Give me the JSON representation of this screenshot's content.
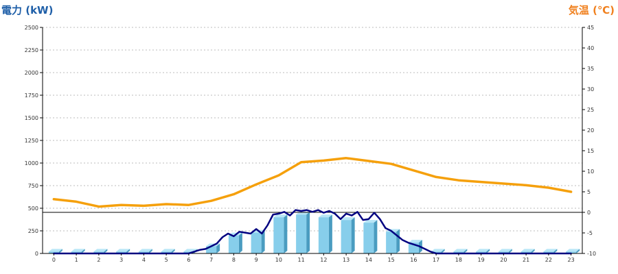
{
  "chart_data": {
    "type": "bar",
    "title": "",
    "ylabel_left": "電力 (kW)",
    "ylabel_right": "気温 (℃)",
    "ylim_left": [
      0,
      2500
    ],
    "yticks_left": [
      "0",
      "250",
      "500",
      "750",
      "1000",
      "1250",
      "1500",
      "1750",
      "2000",
      "2250",
      "2500"
    ],
    "ylim_right": [
      -10,
      45
    ],
    "yticks_right": [
      "-10",
      "-5",
      "0",
      "5",
      "10",
      "15",
      "20",
      "25",
      "30",
      "35",
      "40",
      "45"
    ],
    "categories": [
      "0",
      "1",
      "2",
      "3",
      "4",
      "5",
      "6",
      "7",
      "8",
      "9",
      "10",
      "11",
      "12",
      "13",
      "14",
      "15",
      "16",
      "17",
      "18",
      "19",
      "20",
      "21",
      "22",
      "23"
    ],
    "grid": true,
    "reference_line_temperature": 0,
    "colors": {
      "left_title": "#1f5fa8",
      "right_title": "#f0801e",
      "bar_front": "#87ceeb",
      "bar_side": "#4a9cc0",
      "bar_top": "#b8e6f7",
      "power_line": "#000080",
      "temperature_line": "#f5a00c",
      "grid": "#bbbbbb",
      "axis": "#000000"
    },
    "series": [
      {
        "kind": "bar",
        "axis": "left",
        "values": [
          20,
          20,
          20,
          20,
          20,
          20,
          20,
          80,
          200,
          230,
          400,
          430,
          400,
          370,
          340,
          240,
          120,
          20,
          20,
          20,
          20,
          20,
          20,
          20
        ]
      },
      {
        "kind": "line",
        "axis": "left",
        "x": [
          0,
          0.5,
          1,
          1.5,
          2,
          2.5,
          3,
          3.5,
          4,
          4.5,
          5,
          5.5,
          6,
          6.25,
          6.5,
          6.75,
          7,
          7.25,
          7.5,
          7.75,
          8,
          8.25,
          8.5,
          8.75,
          9,
          9.25,
          9.5,
          9.75,
          10,
          10.25,
          10.5,
          10.75,
          11,
          11.25,
          11.5,
          11.75,
          12,
          12.25,
          12.5,
          12.75,
          13,
          13.25,
          13.5,
          13.75,
          14,
          14.25,
          14.5,
          14.75,
          15,
          15.25,
          15.5,
          15.75,
          16,
          16.25,
          16.5,
          16.75,
          17,
          17.5,
          18,
          18.5,
          19,
          19.5,
          20,
          20.5,
          21,
          21.5,
          22,
          22.5,
          23
        ],
        "values": [
          0,
          0,
          0,
          0,
          0,
          0,
          0,
          0,
          0,
          0,
          0,
          0,
          0,
          20,
          40,
          50,
          80,
          110,
          180,
          220,
          190,
          240,
          230,
          220,
          270,
          220,
          310,
          430,
          440,
          460,
          420,
          480,
          470,
          480,
          460,
          480,
          450,
          470,
          440,
          380,
          440,
          420,
          460,
          370,
          380,
          450,
          380,
          280,
          250,
          200,
          150,
          120,
          100,
          80,
          50,
          20,
          0,
          0,
          0,
          0,
          0,
          0,
          0,
          0,
          0,
          0,
          0,
          0,
          0
        ]
      },
      {
        "kind": "line",
        "axis": "right",
        "x": [
          0,
          1,
          2,
          3,
          4,
          5,
          6,
          7,
          8,
          9,
          10,
          11,
          12,
          13,
          14,
          15,
          16,
          17,
          18,
          19,
          20,
          21,
          22,
          23
        ],
        "values": [
          3.2,
          2.6,
          1.4,
          1.8,
          1.6,
          2.0,
          1.8,
          2.8,
          4.4,
          6.8,
          9.0,
          12.2,
          12.6,
          13.2,
          12.5,
          11.8,
          10.2,
          8.6,
          7.8,
          7.4,
          7.0,
          6.6,
          6.0,
          5.0
        ]
      }
    ]
  }
}
